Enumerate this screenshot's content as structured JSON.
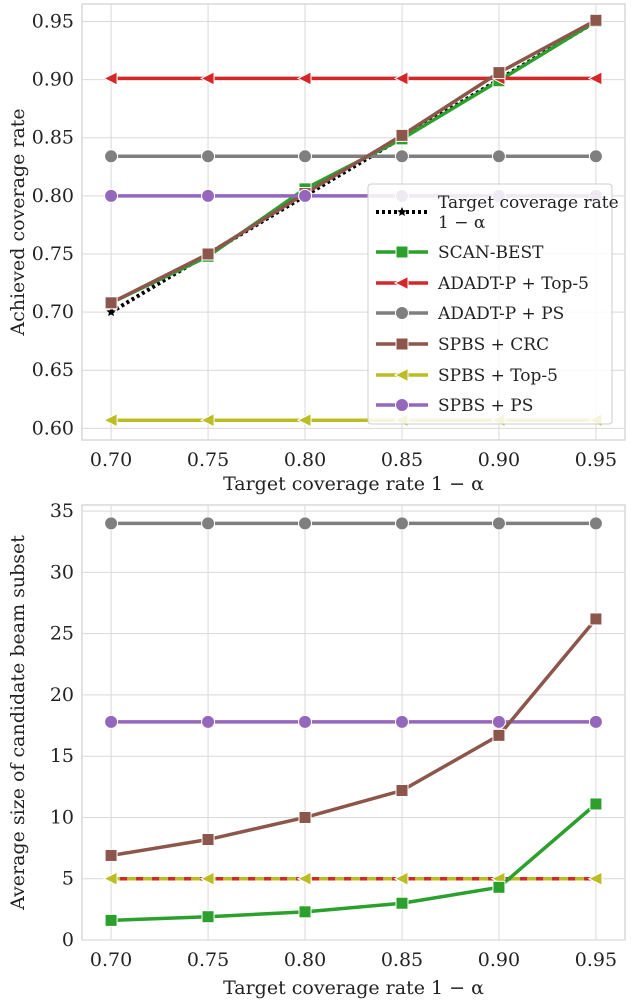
{
  "chart_data": [
    {
      "type": "line",
      "xlabel": "Target coverage rate 1 − α",
      "ylabel": "Achieved coverage rate",
      "xlim": [
        0.685,
        0.965
      ],
      "ylim": [
        0.59,
        0.965
      ],
      "x": [
        0.7,
        0.75,
        0.8,
        0.85,
        0.9,
        0.95
      ],
      "x_ticks": [
        "0.70",
        "0.75",
        "0.80",
        "0.85",
        "0.90",
        "0.95"
      ],
      "y_ticks": [
        0.6,
        0.65,
        0.7,
        0.75,
        0.8,
        0.85,
        0.9,
        0.95
      ],
      "y_tick_labels": [
        "0.60",
        "0.65",
        "0.70",
        "0.75",
        "0.80",
        "0.85",
        "0.90",
        "0.95"
      ],
      "grid": true,
      "legend_position": "center-right",
      "series": [
        {
          "name": "Target coverage rate\n1 − α",
          "color": "#000000",
          "style": "dotted",
          "marker": "star",
          "values": [
            0.7,
            0.75,
            0.8,
            0.85,
            0.9,
            0.95
          ]
        },
        {
          "name": "SCAN-BEST",
          "color": "#2ca02c",
          "style": "solid",
          "marker": "square",
          "values": [
            0.708,
            0.748,
            0.806,
            0.849,
            0.899,
            0.95
          ]
        },
        {
          "name": "ADADT-P + Top-5",
          "color": "#d62728",
          "style": "solid",
          "marker": "triangle-left",
          "values": [
            0.901,
            0.901,
            0.901,
            0.901,
            0.901,
            0.901
          ]
        },
        {
          "name": "ADADT-P + PS",
          "color": "#7f7f7f",
          "style": "solid",
          "marker": "circle",
          "values": [
            0.834,
            0.834,
            0.834,
            0.834,
            0.834,
            0.834
          ]
        },
        {
          "name": "SPBS + CRC",
          "color": "#8c564b",
          "style": "solid",
          "marker": "square",
          "values": [
            0.708,
            0.75,
            0.802,
            0.852,
            0.906,
            0.951
          ]
        },
        {
          "name": "SPBS + Top-5",
          "color": "#bcbd22",
          "style": "solid",
          "marker": "triangle-left",
          "values": [
            0.607,
            0.607,
            0.607,
            0.607,
            0.607,
            0.607
          ]
        },
        {
          "name": "SPBS + PS",
          "color": "#9467bd",
          "style": "solid",
          "marker": "circle",
          "values": [
            0.8,
            0.8,
            0.8,
            0.8,
            0.8,
            0.8
          ]
        }
      ]
    },
    {
      "type": "line",
      "xlabel": "Target coverage rate 1 − α",
      "ylabel": "Average size of candidate beam subset",
      "xlim": [
        0.685,
        0.965
      ],
      "ylim": [
        0,
        35.5
      ],
      "x": [
        0.7,
        0.75,
        0.8,
        0.85,
        0.9,
        0.95
      ],
      "x_ticks": [
        "0.70",
        "0.75",
        "0.80",
        "0.85",
        "0.90",
        "0.95"
      ],
      "y_ticks": [
        0,
        5,
        10,
        15,
        20,
        25,
        30,
        35
      ],
      "y_tick_labels": [
        "0",
        "5",
        "10",
        "15",
        "20",
        "25",
        "30",
        "35"
      ],
      "grid": true,
      "series": [
        {
          "name": "ADADT-P + PS",
          "color": "#7f7f7f",
          "style": "solid",
          "marker": "circle",
          "values": [
            34,
            34,
            34,
            34,
            34,
            34
          ]
        },
        {
          "name": "SPBS + PS",
          "color": "#9467bd",
          "style": "solid",
          "marker": "circle",
          "values": [
            17.8,
            17.8,
            17.8,
            17.8,
            17.8,
            17.8
          ]
        },
        {
          "name": "SPBS + CRC",
          "color": "#8c564b",
          "style": "solid",
          "marker": "square",
          "values": [
            6.9,
            8.2,
            10.0,
            12.2,
            16.7,
            26.2
          ]
        },
        {
          "name": "ADADT-P + Top-5",
          "color": "#d62728",
          "style": "solid",
          "marker": "triangle-left",
          "values": [
            5,
            5,
            5,
            5,
            5,
            5
          ]
        },
        {
          "name": "SPBS + Top-5",
          "color": "#bcbd22",
          "style": "dashed",
          "marker": "triangle-left",
          "values": [
            5,
            5,
            5,
            5,
            5,
            5
          ]
        },
        {
          "name": "SCAN-BEST",
          "color": "#2ca02c",
          "style": "solid",
          "marker": "square",
          "values": [
            1.6,
            1.9,
            2.3,
            3.0,
            4.3,
            11.1
          ]
        }
      ]
    }
  ]
}
